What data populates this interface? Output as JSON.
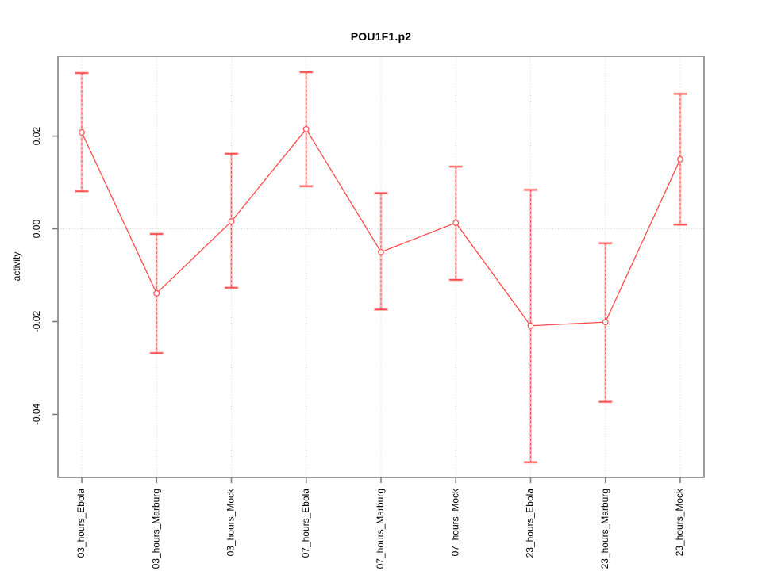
{
  "chart_data": {
    "type": "line",
    "title": "POU1F1.p2",
    "ylabel": "activity",
    "xlabel": "",
    "categories": [
      "03_hours_Ebola",
      "03_hours_Marburg",
      "03_hours_Mock",
      "07_hours_Ebola",
      "07_hours_Marburg",
      "07_hours_Mock",
      "23_hours_Ebola",
      "23_hours_Marburg",
      "23_hours_Mock"
    ],
    "series": [
      {
        "name": "activity",
        "values": [
          0.0208,
          -0.0139,
          0.0016,
          0.0215,
          -0.005,
          0.0013,
          -0.0209,
          -0.0201,
          0.015
        ],
        "error_upper": [
          0.0336,
          -0.0011,
          0.0162,
          0.0338,
          0.0077,
          0.0134,
          0.0084,
          -0.0031,
          0.0291
        ],
        "error_lower": [
          0.0081,
          -0.0268,
          -0.0127,
          0.0092,
          -0.0174,
          -0.011,
          -0.0503,
          -0.0373,
          0.0009
        ]
      }
    ],
    "yticks": [
      0.02,
      0.0,
      -0.02,
      -0.04
    ],
    "ytick_labels": [
      "0.02",
      "0.00",
      "-0.02",
      "-0.04"
    ],
    "ylim": [
      -0.0536,
      0.0372
    ],
    "grid": {
      "vertical_gridlines": true,
      "horizontal_zero_line": true,
      "style": "dotted"
    },
    "legend": "none",
    "marker": "open-circle",
    "error_bars": "dashed-line-with-caps",
    "colors": {
      "series": "#ff4b4b",
      "error_band": "rgba(255,110,110,0.38)",
      "grid": "#d4d4d4",
      "axis": "#7a7a7a",
      "text": "#000000",
      "background": "#ffffff"
    }
  }
}
